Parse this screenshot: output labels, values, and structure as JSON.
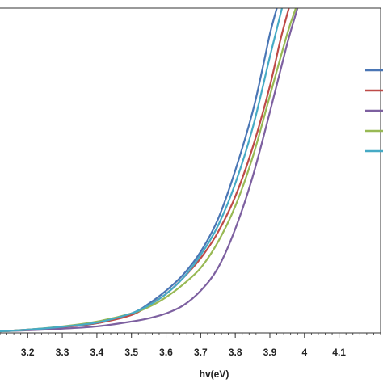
{
  "chart_data": {
    "type": "line",
    "xlabel": "hv(eV)",
    "xlim": [
      3.12,
      4.22
    ],
    "ylim": [
      0,
      1
    ],
    "x_ticks": [
      3.2,
      3.3,
      3.4,
      3.5,
      3.6,
      3.7,
      3.8,
      3.9,
      4,
      4.1
    ],
    "x_tick_labels": [
      "3.2",
      "3.3",
      "3.4",
      "3.5",
      "3.6",
      "3.7",
      "3.8",
      "3.9",
      "4",
      "4.1"
    ],
    "grid": false,
    "legend_placement": "right",
    "series": [
      {
        "color": "#4a76b5",
        "x": [
          3.12,
          3.2,
          3.3,
          3.4,
          3.5,
          3.55,
          3.6,
          3.65,
          3.7,
          3.75,
          3.8,
          3.85,
          3.88,
          3.9,
          3.92
        ],
        "y": [
          0.005,
          0.01,
          0.018,
          0.03,
          0.06,
          0.09,
          0.13,
          0.18,
          0.25,
          0.35,
          0.5,
          0.68,
          0.82,
          0.92,
          1.0
        ]
      },
      {
        "color": "#be4b48",
        "x": [
          3.12,
          3.2,
          3.3,
          3.4,
          3.5,
          3.55,
          3.6,
          3.65,
          3.7,
          3.75,
          3.8,
          3.85,
          3.9,
          3.93,
          3.955
        ],
        "y": [
          0.005,
          0.01,
          0.018,
          0.03,
          0.055,
          0.085,
          0.12,
          0.17,
          0.23,
          0.31,
          0.42,
          0.57,
          0.76,
          0.9,
          1.0
        ]
      },
      {
        "color": "#7d60a0",
        "x": [
          3.12,
          3.2,
          3.3,
          3.4,
          3.5,
          3.55,
          3.6,
          3.65,
          3.7,
          3.75,
          3.8,
          3.85,
          3.9,
          3.95,
          3.98
        ],
        "y": [
          0.005,
          0.008,
          0.013,
          0.02,
          0.035,
          0.045,
          0.06,
          0.085,
          0.13,
          0.2,
          0.32,
          0.48,
          0.68,
          0.89,
          1.0
        ]
      },
      {
        "color": "#98b954",
        "x": [
          3.12,
          3.2,
          3.3,
          3.4,
          3.5,
          3.55,
          3.6,
          3.65,
          3.7,
          3.75,
          3.8,
          3.85,
          3.9,
          3.95,
          3.975
        ],
        "y": [
          0.005,
          0.01,
          0.02,
          0.035,
          0.06,
          0.08,
          0.11,
          0.15,
          0.2,
          0.28,
          0.39,
          0.54,
          0.73,
          0.92,
          1.0
        ]
      },
      {
        "color": "#46aac5",
        "x": [
          3.12,
          3.2,
          3.3,
          3.4,
          3.5,
          3.55,
          3.6,
          3.65,
          3.7,
          3.75,
          3.8,
          3.85,
          3.9,
          3.935
        ],
        "y": [
          0.005,
          0.01,
          0.019,
          0.032,
          0.06,
          0.085,
          0.12,
          0.17,
          0.24,
          0.33,
          0.46,
          0.63,
          0.85,
          1.0
        ]
      }
    ]
  }
}
